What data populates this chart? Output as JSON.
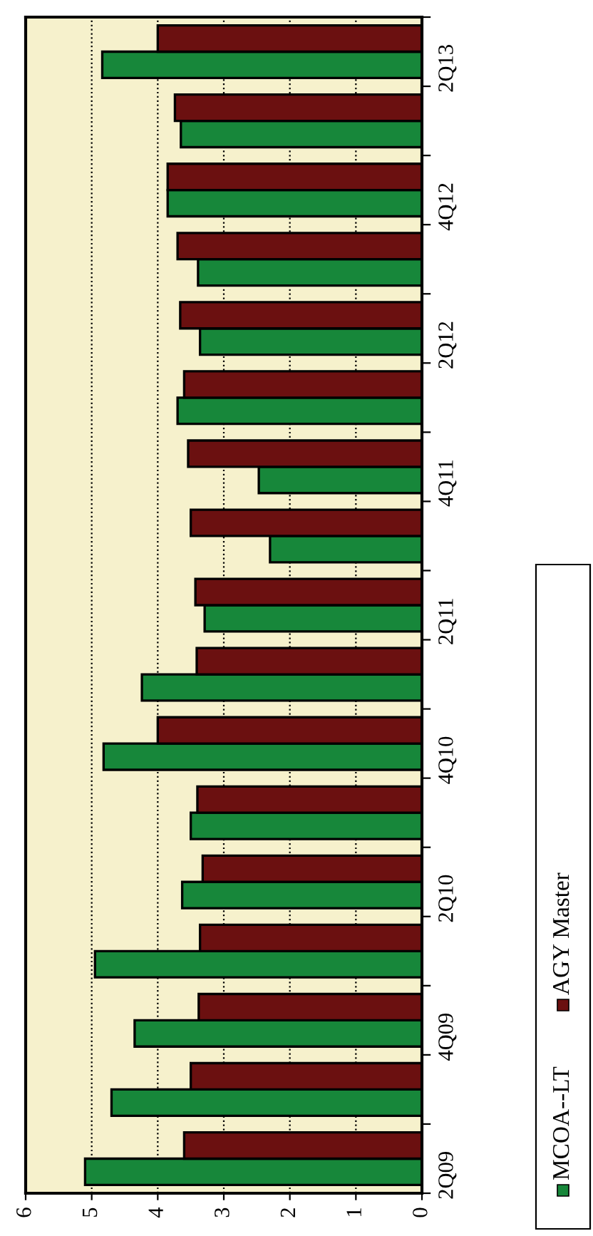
{
  "chart_data": {
    "type": "bar",
    "orientation": "horizontal",
    "categories": [
      "2Q13",
      null,
      "4Q12",
      null,
      "2Q12",
      null,
      "4Q11",
      null,
      "2Q11",
      null,
      "4Q10",
      null,
      "2Q10",
      null,
      "4Q09",
      null,
      "2Q09"
    ],
    "series": [
      {
        "name": "MCOA--LT",
        "color": "#17873a",
        "values": [
          4.84,
          3.65,
          3.85,
          3.39,
          3.36,
          3.7,
          2.47,
          2.3,
          3.29,
          4.24,
          4.82,
          3.5,
          3.63,
          4.95,
          4.35,
          4.7,
          5.1
        ]
      },
      {
        "name": "AGY Master",
        "color": "#6b1010",
        "values": [
          4.0,
          3.74,
          3.85,
          3.7,
          3.66,
          3.6,
          3.54,
          3.5,
          3.43,
          3.41,
          4.0,
          3.4,
          3.32,
          3.36,
          3.38,
          3.5,
          3.6
        ]
      }
    ],
    "xlim": [
      6,
      0
    ],
    "xticks": [
      0,
      1,
      2,
      3,
      4,
      5,
      6
    ],
    "grid": "x",
    "legend": "right"
  }
}
